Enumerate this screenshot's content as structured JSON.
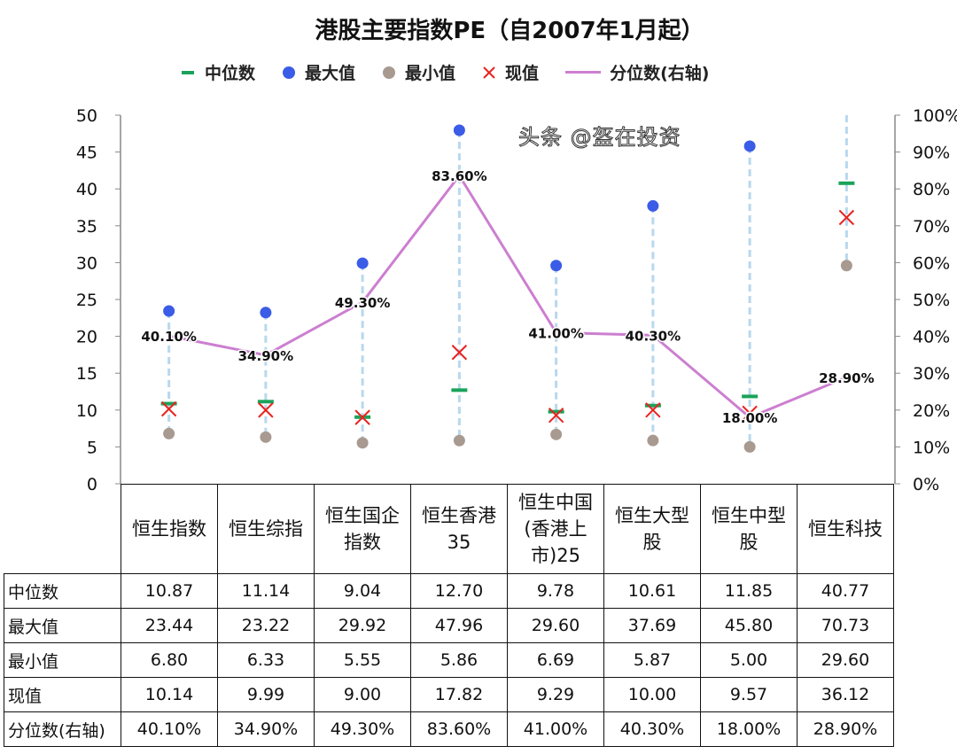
{
  "chart_data": {
    "type": "line",
    "title": "港股主要指数PE（自2007年1月起）",
    "legend": [
      "中位数",
      "最大值",
      "最小值",
      "现值",
      "分位数(右轴)"
    ],
    "legend_placement": "top",
    "categories": [
      "恒生指数",
      "恒生综指",
      "恒生国企指数",
      "恒生香港35",
      "恒生中国(香港上市)25",
      "恒生大型股",
      "恒生中型股",
      "恒生科技"
    ],
    "category_lines": [
      [
        "恒生指数"
      ],
      [
        "恒生综指"
      ],
      [
        "恒生国企",
        "指数"
      ],
      [
        "恒生香港",
        "35"
      ],
      [
        "恒生中国",
        "(香港上",
        "市)25"
      ],
      [
        "恒生大型",
        "股"
      ],
      [
        "恒生中型",
        "股"
      ],
      [
        "恒生科技"
      ]
    ],
    "series": [
      {
        "name": "中位数",
        "marker": "dash",
        "color": "#1aa35a",
        "values": [
          10.87,
          11.14,
          9.04,
          12.7,
          9.78,
          10.61,
          11.85,
          40.77
        ]
      },
      {
        "name": "最大值",
        "marker": "circle",
        "color": "#3b5ce6",
        "values": [
          23.44,
          23.22,
          29.92,
          47.96,
          29.6,
          37.69,
          45.8,
          70.73
        ]
      },
      {
        "name": "最小值",
        "marker": "circle",
        "color": "#a89a90",
        "values": [
          6.8,
          6.33,
          5.55,
          5.86,
          6.69,
          5.87,
          5.0,
          29.6
        ]
      },
      {
        "name": "现值",
        "marker": "x",
        "color": "#e8231f",
        "values": [
          10.14,
          9.99,
          9.0,
          17.82,
          9.29,
          10.0,
          9.57,
          36.12
        ]
      },
      {
        "name": "分位数(右轴)",
        "marker": "line",
        "color": "#cc7fd0",
        "axis": "right",
        "values": [
          40.1,
          34.9,
          49.3,
          83.6,
          41.0,
          40.3,
          18.0,
          28.9
        ]
      }
    ],
    "pct_labels": [
      "40.10%",
      "34.90%",
      "49.30%",
      "83.60%",
      "41.00%",
      "40.30%",
      "18.00%",
      "28.90%"
    ],
    "ylim": [
      0,
      50
    ],
    "yticks": [
      "0",
      "5",
      "10",
      "15",
      "20",
      "25",
      "30",
      "35",
      "40",
      "45",
      "50"
    ],
    "y2lim": [
      0,
      100
    ],
    "y2ticks": [
      "0%",
      "10%",
      "20%",
      "30%",
      "40%",
      "50%",
      "60%",
      "70%",
      "80%",
      "90%",
      "100%"
    ],
    "range_line_color": "#b8d8ee",
    "grid": false
  },
  "table": {
    "rows": [
      {
        "label": "中位数",
        "cells": [
          "10.87",
          "11.14",
          "9.04",
          "12.70",
          "9.78",
          "10.61",
          "11.85",
          "40.77"
        ]
      },
      {
        "label": "最大值",
        "cells": [
          "23.44",
          "23.22",
          "29.92",
          "47.96",
          "29.60",
          "37.69",
          "45.80",
          "70.73"
        ]
      },
      {
        "label": "最小值",
        "cells": [
          "6.80",
          "6.33",
          "5.55",
          "5.86",
          "6.69",
          "5.87",
          "5.00",
          "29.60"
        ]
      },
      {
        "label": "现值",
        "cells": [
          "10.14",
          "9.99",
          "9.00",
          "17.82",
          "9.29",
          "10.00",
          "9.57",
          "36.12"
        ]
      },
      {
        "label": "分位数(右轴)",
        "cells": [
          "40.10%",
          "34.90%",
          "49.30%",
          "83.60%",
          "41.00%",
          "40.30%",
          "18.00%",
          "28.90%"
        ]
      }
    ]
  },
  "watermark": "头条 @盔在投资"
}
